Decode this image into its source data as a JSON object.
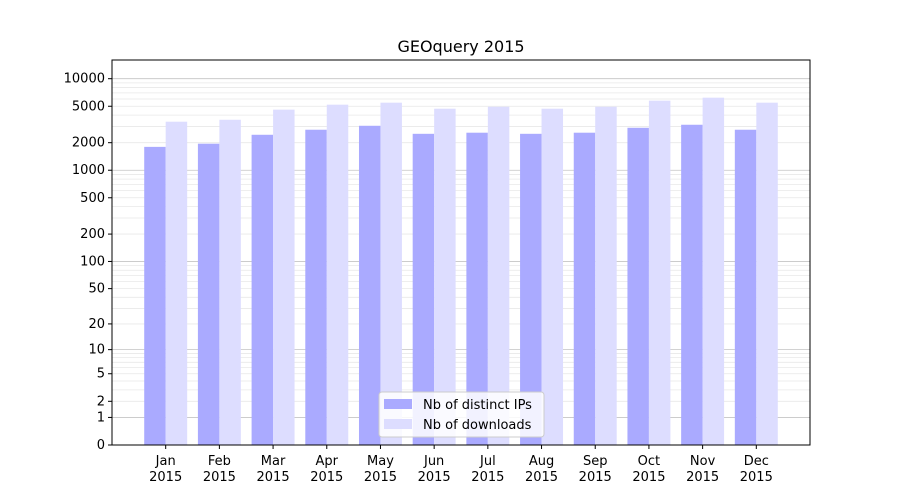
{
  "chart_data": {
    "type": "bar",
    "title": "GEOquery 2015",
    "xlabel": "",
    "ylabel": "",
    "yscale": "symlog (log10(1+y))",
    "ylim": [
      0,
      16000
    ],
    "y_ticks": [
      0,
      1,
      2,
      5,
      10,
      20,
      50,
      100,
      200,
      500,
      1000,
      2000,
      5000,
      10000
    ],
    "grid": true,
    "legend_position": "lower center",
    "categories": [
      [
        "Jan",
        "2015"
      ],
      [
        "Feb",
        "2015"
      ],
      [
        "Mar",
        "2015"
      ],
      [
        "Apr",
        "2015"
      ],
      [
        "May",
        "2015"
      ],
      [
        "Jun",
        "2015"
      ],
      [
        "Jul",
        "2015"
      ],
      [
        "Aug",
        "2015"
      ],
      [
        "Sep",
        "2015"
      ],
      [
        "Oct",
        "2015"
      ],
      [
        "Nov",
        "2015"
      ],
      [
        "Dec",
        "2015"
      ]
    ],
    "series": [
      {
        "name": "Nb of distinct IPs",
        "color": "#aaaaff",
        "values": [
          1800,
          1950,
          2440,
          2770,
          3060,
          2500,
          2570,
          2500,
          2570,
          2910,
          3140,
          2770
        ]
      },
      {
        "name": "Nb of downloads",
        "color": "#ddddff",
        "values": [
          3390,
          3560,
          4590,
          5200,
          5470,
          4700,
          4940,
          4700,
          4940,
          5750,
          6200,
          5470
        ]
      }
    ]
  }
}
